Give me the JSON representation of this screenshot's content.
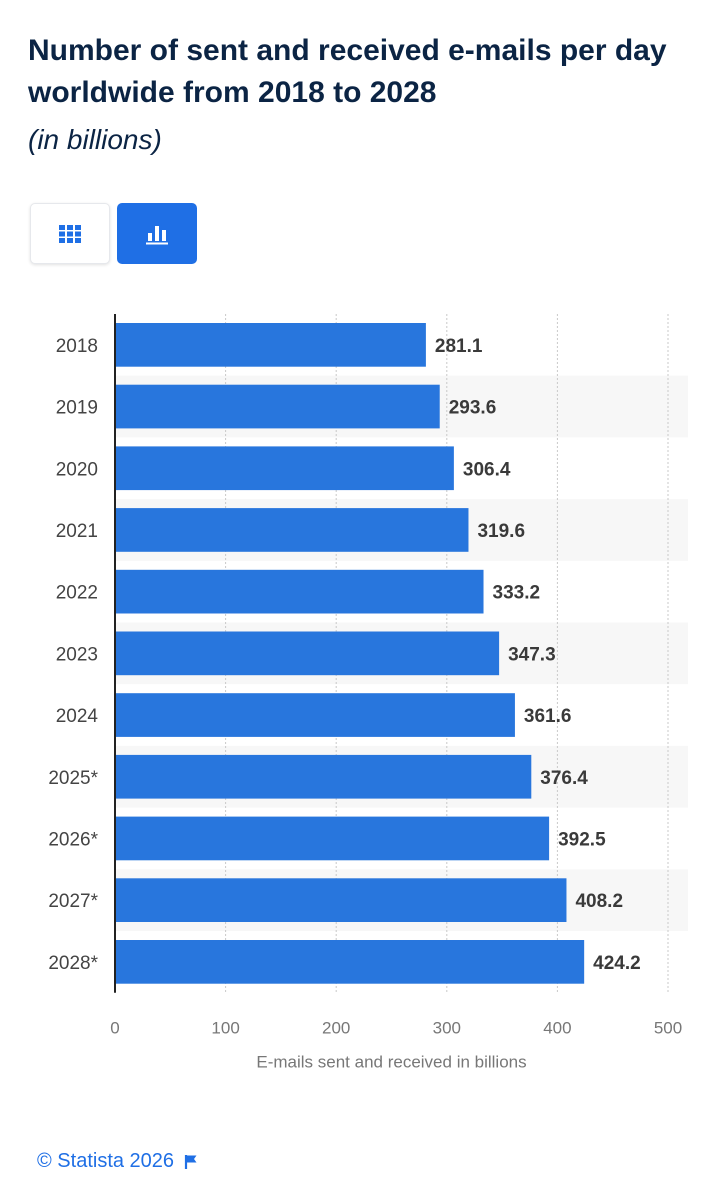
{
  "header": {
    "title": "Number of sent and received e-mails per day worldwide from 2018 to 2028",
    "subtitle": "(in billions)"
  },
  "view_toggle": {
    "table_icon": "grid-icon",
    "chart_icon": "bar-chart-icon",
    "active": "chart",
    "accent_color": "#1f6fe5"
  },
  "chart_data": {
    "type": "bar",
    "orientation": "horizontal",
    "categories": [
      "2018",
      "2019",
      "2020",
      "2021",
      "2022",
      "2023",
      "2024",
      "2025*",
      "2026*",
      "2027*",
      "2028*"
    ],
    "values": [
      281.1,
      293.6,
      306.4,
      319.6,
      333.2,
      347.3,
      361.6,
      376.4,
      392.5,
      408.2,
      424.2
    ],
    "value_labels": [
      "281.1",
      "293.6",
      "306.4",
      "319.6",
      "333.2",
      "347.3",
      "361.6",
      "376.4",
      "392.5",
      "408.2",
      "424.2"
    ],
    "xlabel": "E-mails sent and received in billions",
    "ylabel": "",
    "xlim": [
      0,
      500
    ],
    "xticks": [
      "0",
      "100",
      "200",
      "300",
      "400",
      "500"
    ],
    "grid": "vertical-dotted",
    "bar_color": "#2876dd",
    "stripe_color": "#f7f7f7"
  },
  "footer": {
    "credit": "© Statista 2026",
    "flag_icon": "flag-icon"
  }
}
